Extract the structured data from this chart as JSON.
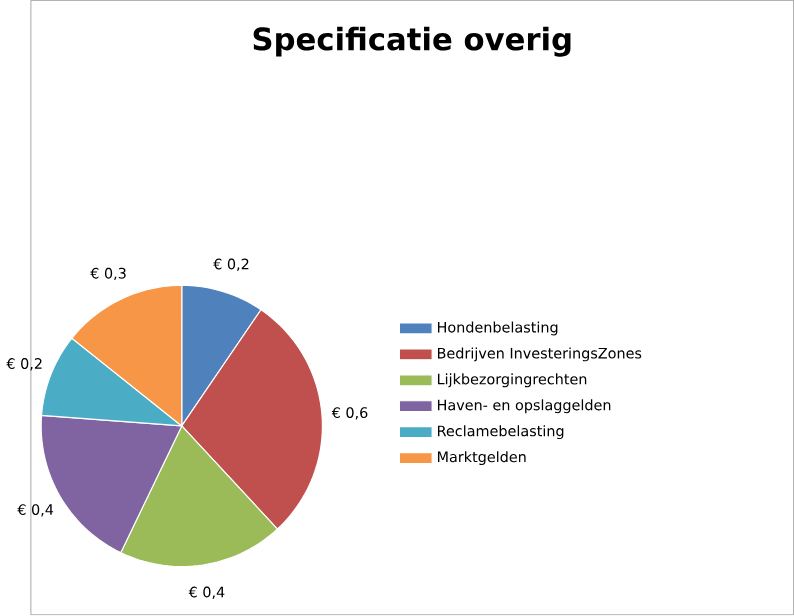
{
  "chart_data": {
    "type": "pie",
    "title": "Specificatie overig",
    "categories": [
      "Hondenbelasting",
      "Bedrijven InvesteringsZones",
      "Lijkbezorgingrechten",
      "Haven- en opslaggelden",
      "Reclamebelasting",
      "Marktgelden"
    ],
    "values": [
      0.2,
      0.6,
      0.4,
      0.4,
      0.2,
      0.3
    ],
    "value_labels": [
      "€ 0,2",
      "€ 0,6",
      "€ 0,4",
      "€ 0,4",
      "€ 0,2",
      "€ 0,3"
    ],
    "colors": [
      "#4f81bd",
      "#c0504d",
      "#9bbb59",
      "#8064a2",
      "#4bacc6",
      "#f79646"
    ],
    "legend": "right"
  }
}
